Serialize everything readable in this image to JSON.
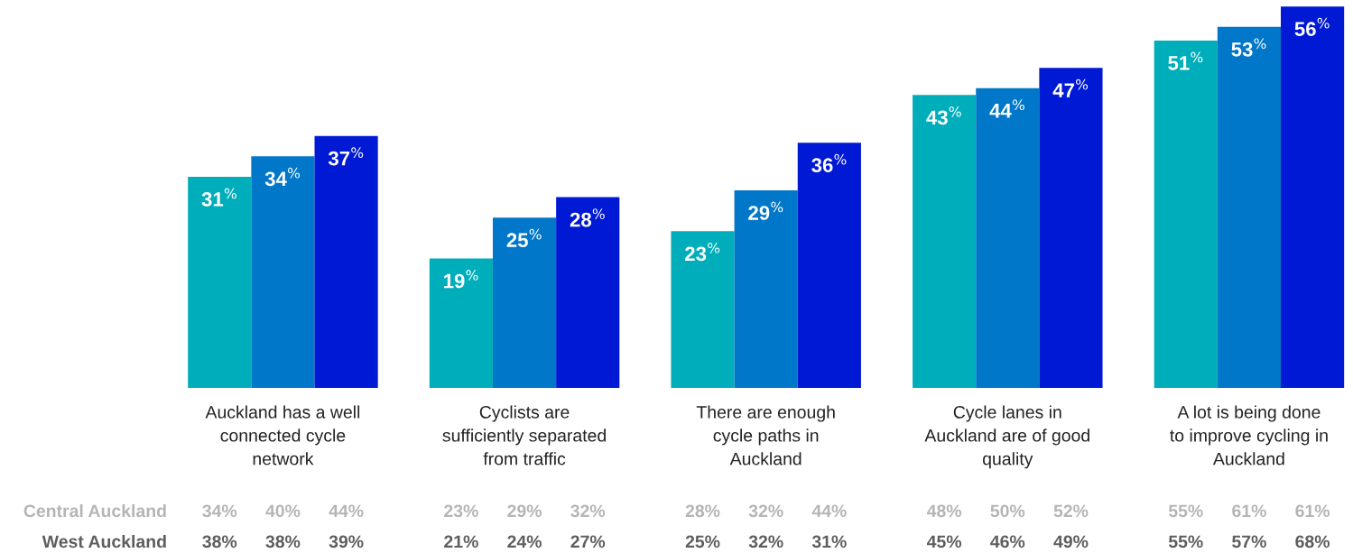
{
  "chart_data": {
    "type": "bar",
    "categories": [
      "Auckland has a well\nconnected cycle\nnetwork",
      "Cyclists are\nsufficiently separated\nfrom traffic",
      "There are enough\ncycle paths in\nAuckland",
      "Cycle lanes in\nAuckland are of good\nquality",
      "A lot is being done\nto improve cycling in\nAuckland"
    ],
    "series": [
      {
        "color": "#00aebb",
        "values": [
          31,
          19,
          23,
          43,
          51
        ],
        "value_labels": [
          "31$^{%}$",
          "19$^{%}$",
          "23$^{%}$",
          "43$^{%}$",
          "51$^{%}$"
        ]
      },
      {
        "color": "#0077c8",
        "values": [
          34,
          25,
          29,
          44,
          53
        ],
        "value_labels": [
          "34$^{%}$",
          "25$^{%}$",
          "29$^{%}$",
          "44$^{%}$",
          "53$^{%}$"
        ]
      },
      {
        "color": "#0019d4",
        "values": [
          37,
          28,
          36,
          47,
          56
        ],
        "value_labels": [
          "37$^{%}$",
          "28$^{%}$",
          "36$^{%}$",
          "47$^{%}$",
          "56$^{%}$"
        ]
      }
    ],
    "annotations": [
      "Central Auckland",
      "34%",
      "40%",
      "44%",
      "23%",
      "29%",
      "32%",
      "28%",
      "32%",
      "44%",
      "48%",
      "50%",
      "52%",
      "55%",
      "61%",
      "61%",
      "West Auckland",
      "38%",
      "38%",
      "39%",
      "21%",
      "24%",
      "27%",
      "25%",
      "32%",
      "31%",
      "45%",
      "46%",
      "49%",
      "55%",
      "57%",
      "68%"
    ]
  }
}
